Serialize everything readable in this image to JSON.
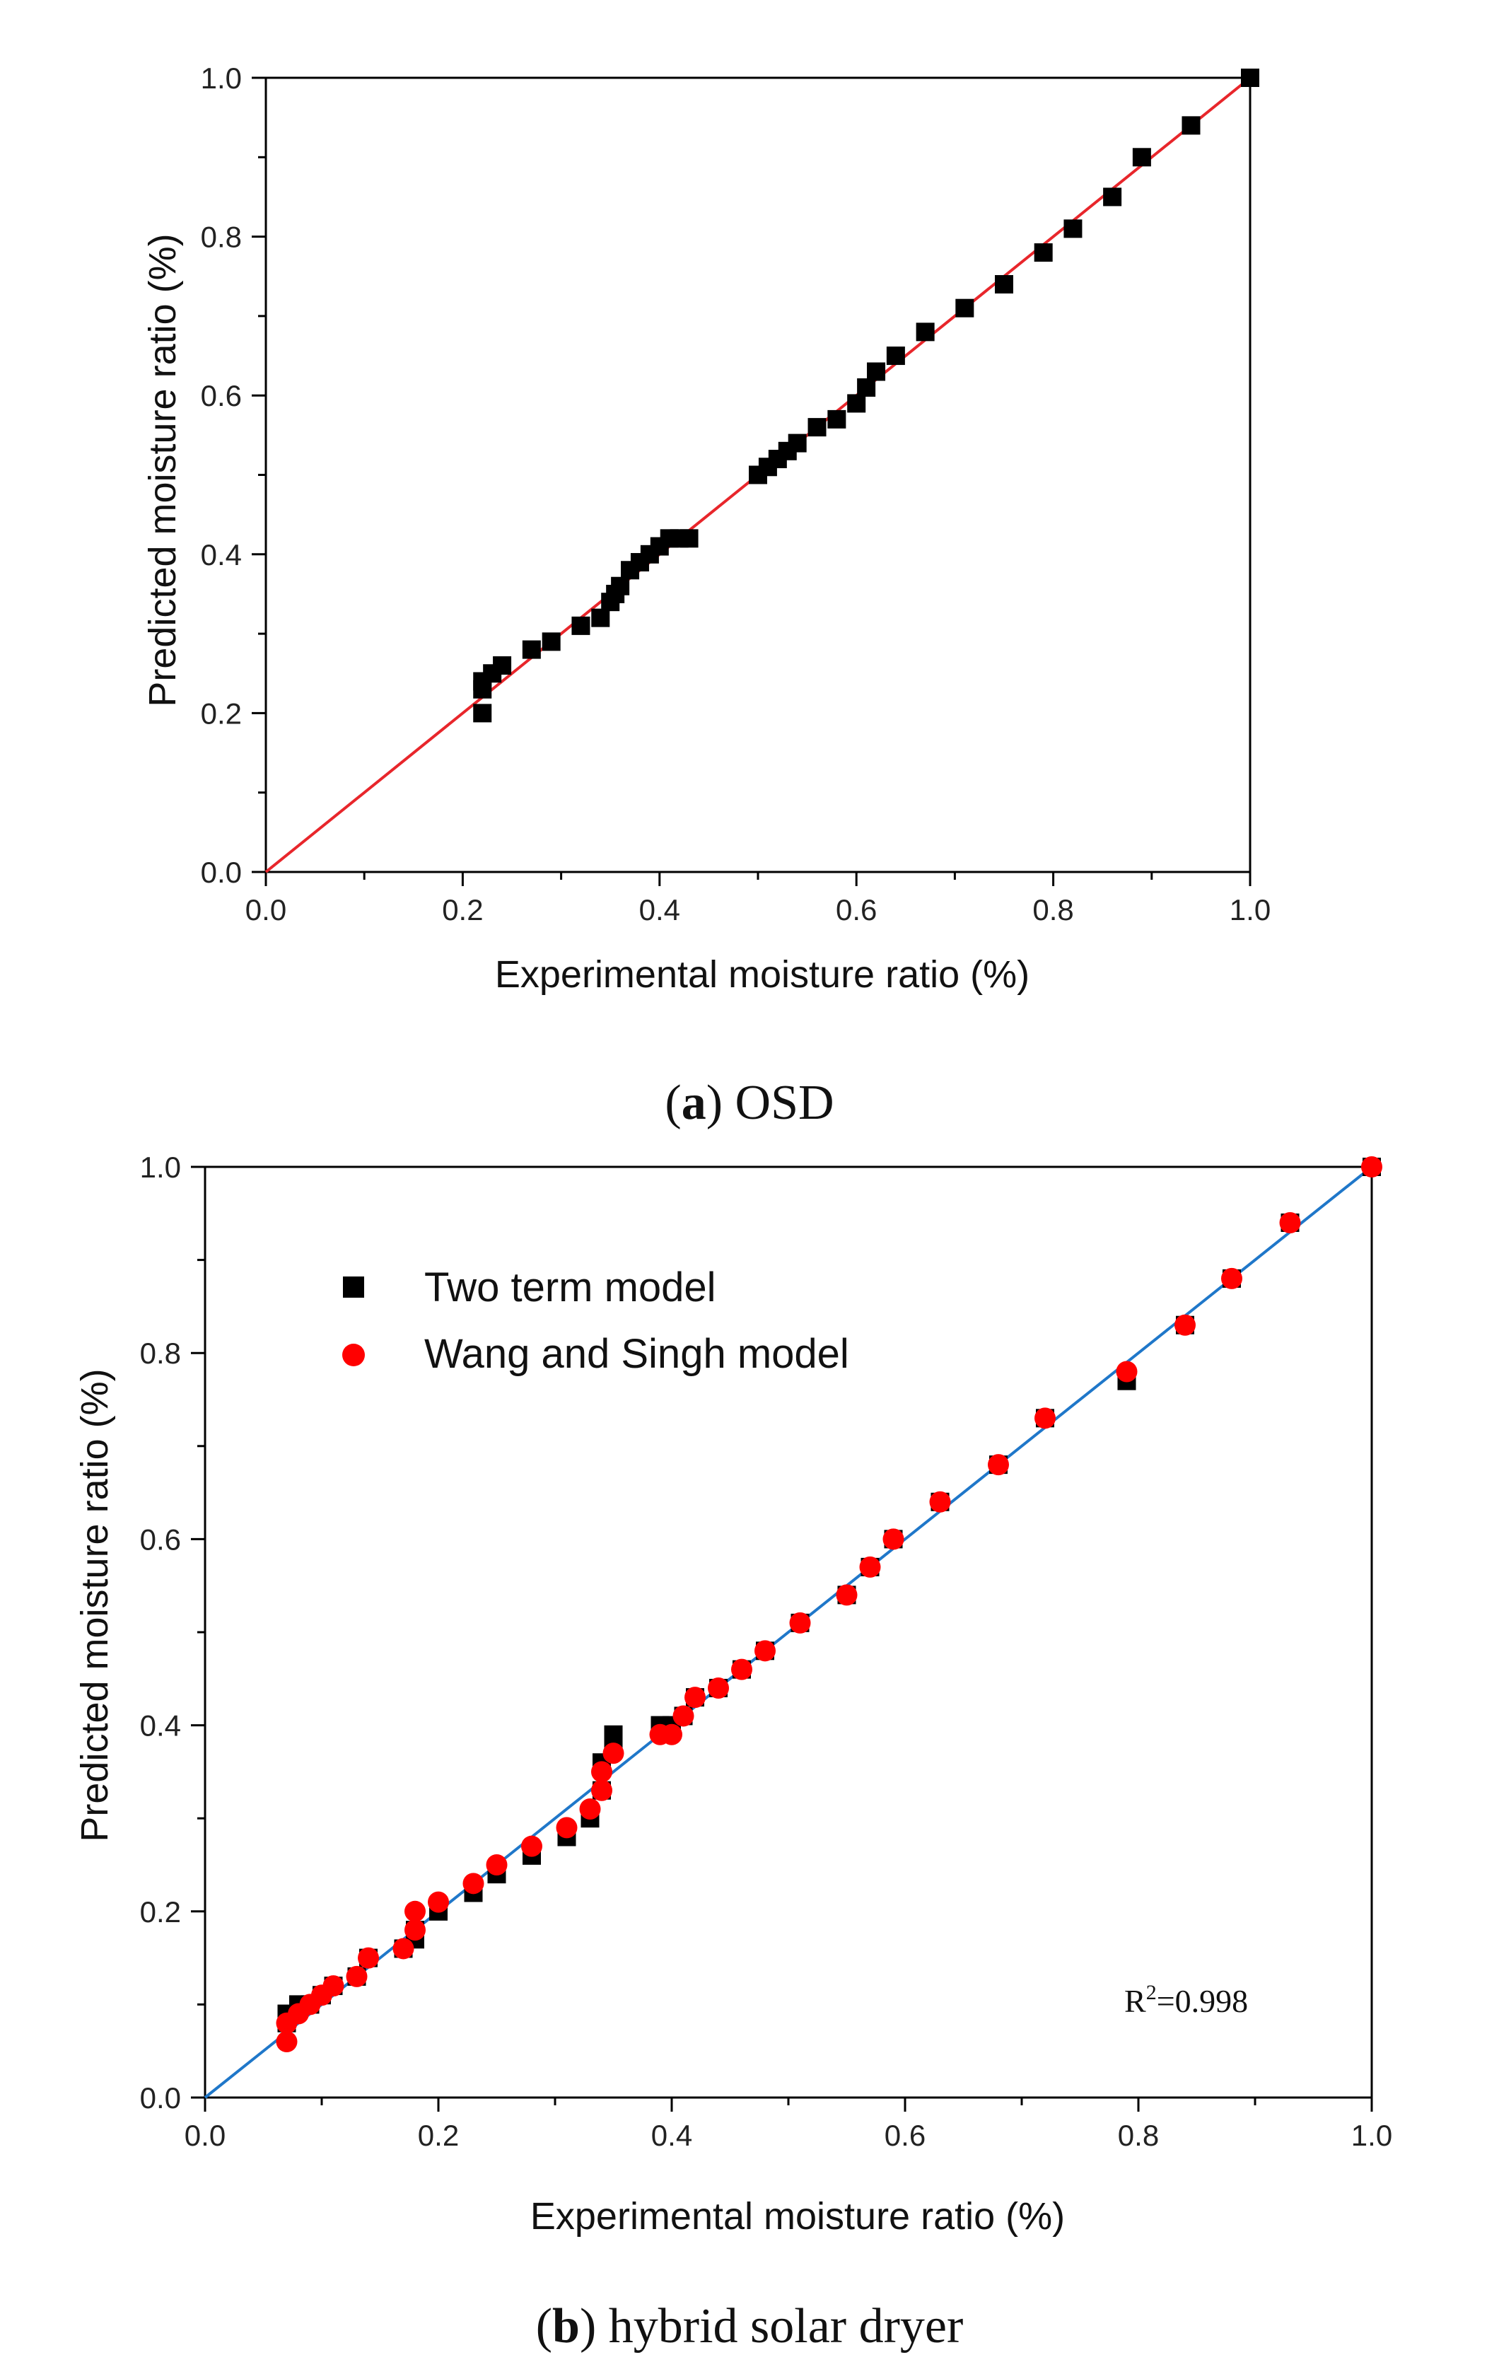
{
  "figure_captions": [
    {
      "tag": "a",
      "rest": " OSD"
    },
    {
      "tag": "b",
      "rest": " hybrid solar dryer"
    }
  ],
  "chart_data": [
    {
      "type": "scatter",
      "title": "",
      "xlabel": "Experimental moisture ratio (%)",
      "ylabel": "Predicted moisture ratio (%)",
      "xlim": [
        0,
        1
      ],
      "ylim": [
        0,
        1
      ],
      "xticks": [
        "0.0",
        "0.2",
        "0.4",
        "0.6",
        "0.8",
        "1.0"
      ],
      "yticks": [
        "0.0",
        "0.2",
        "0.4",
        "0.6",
        "0.8",
        "1.0"
      ],
      "fit_line": {
        "x": [
          0,
          1
        ],
        "y": [
          0,
          1
        ],
        "color": "#e8262b"
      },
      "series": [
        {
          "name": "OSD",
          "marker": "square",
          "color": "#000000",
          "x": [
            0.22,
            0.22,
            0.22,
            0.23,
            0.24,
            0.27,
            0.29,
            0.32,
            0.34,
            0.35,
            0.355,
            0.36,
            0.37,
            0.38,
            0.39,
            0.4,
            0.41,
            0.42,
            0.43,
            0.5,
            0.51,
            0.52,
            0.53,
            0.54,
            0.56,
            0.58,
            0.6,
            0.61,
            0.62,
            0.64,
            0.67,
            0.71,
            0.75,
            0.79,
            0.82,
            0.86,
            0.89,
            0.94,
            1.0
          ],
          "y": [
            0.2,
            0.23,
            0.24,
            0.25,
            0.26,
            0.28,
            0.29,
            0.31,
            0.32,
            0.34,
            0.35,
            0.36,
            0.38,
            0.39,
            0.4,
            0.41,
            0.42,
            0.42,
            0.42,
            0.5,
            0.51,
            0.52,
            0.53,
            0.54,
            0.56,
            0.57,
            0.59,
            0.61,
            0.63,
            0.65,
            0.68,
            0.71,
            0.74,
            0.78,
            0.81,
            0.85,
            0.9,
            0.94,
            1.0
          ]
        }
      ]
    },
    {
      "type": "scatter",
      "title": "",
      "xlabel": "Experimental moisture ratio (%)",
      "ylabel": "Predicted moisture ratio (%)",
      "xlim": [
        0,
        1
      ],
      "ylim": [
        0,
        1
      ],
      "xticks": [
        "0.0",
        "0.2",
        "0.4",
        "0.6",
        "0.8",
        "1.0"
      ],
      "yticks": [
        "0.0",
        "0.2",
        "0.4",
        "0.6",
        "0.8",
        "1.0"
      ],
      "fit_line": {
        "x": [
          0,
          1
        ],
        "y": [
          0,
          1
        ],
        "color": "#1f77c9"
      },
      "annotation": {
        "base": "R",
        "sup": "2",
        "rest": "=0.998"
      },
      "legend_location": "upper-left",
      "series": [
        {
          "name": "Two term model",
          "marker": "square",
          "color": "#000000",
          "x": [
            0.07,
            0.07,
            0.08,
            0.09,
            0.1,
            0.11,
            0.13,
            0.14,
            0.17,
            0.18,
            0.18,
            0.2,
            0.23,
            0.25,
            0.28,
            0.31,
            0.33,
            0.34,
            0.34,
            0.35,
            0.35,
            0.39,
            0.4,
            0.41,
            0.42,
            0.44,
            0.46,
            0.48,
            0.51,
            0.55,
            0.57,
            0.59,
            0.63,
            0.68,
            0.72,
            0.79,
            0.84,
            0.88,
            0.93,
            1.0
          ],
          "y": [
            0.08,
            0.09,
            0.1,
            0.1,
            0.11,
            0.12,
            0.13,
            0.15,
            0.16,
            0.17,
            0.18,
            0.2,
            0.22,
            0.24,
            0.26,
            0.28,
            0.3,
            0.33,
            0.36,
            0.38,
            0.39,
            0.4,
            0.4,
            0.41,
            0.43,
            0.44,
            0.46,
            0.48,
            0.51,
            0.54,
            0.57,
            0.6,
            0.64,
            0.68,
            0.73,
            0.77,
            0.83,
            0.88,
            0.94,
            1.0
          ]
        },
        {
          "name": "Wang and Singh model",
          "marker": "circle",
          "color": "#ff0000",
          "x": [
            0.07,
            0.07,
            0.08,
            0.09,
            0.1,
            0.11,
            0.13,
            0.14,
            0.17,
            0.18,
            0.18,
            0.2,
            0.23,
            0.25,
            0.28,
            0.31,
            0.33,
            0.34,
            0.34,
            0.35,
            0.39,
            0.4,
            0.41,
            0.42,
            0.44,
            0.46,
            0.48,
            0.51,
            0.55,
            0.57,
            0.59,
            0.63,
            0.68,
            0.72,
            0.79,
            0.84,
            0.88,
            0.93,
            1.0
          ],
          "y": [
            0.06,
            0.08,
            0.09,
            0.1,
            0.11,
            0.12,
            0.13,
            0.15,
            0.16,
            0.18,
            0.2,
            0.21,
            0.23,
            0.25,
            0.27,
            0.29,
            0.31,
            0.33,
            0.35,
            0.37,
            0.39,
            0.39,
            0.41,
            0.43,
            0.44,
            0.46,
            0.48,
            0.51,
            0.54,
            0.57,
            0.6,
            0.64,
            0.68,
            0.73,
            0.78,
            0.83,
            0.88,
            0.94,
            1.0
          ]
        }
      ]
    }
  ]
}
